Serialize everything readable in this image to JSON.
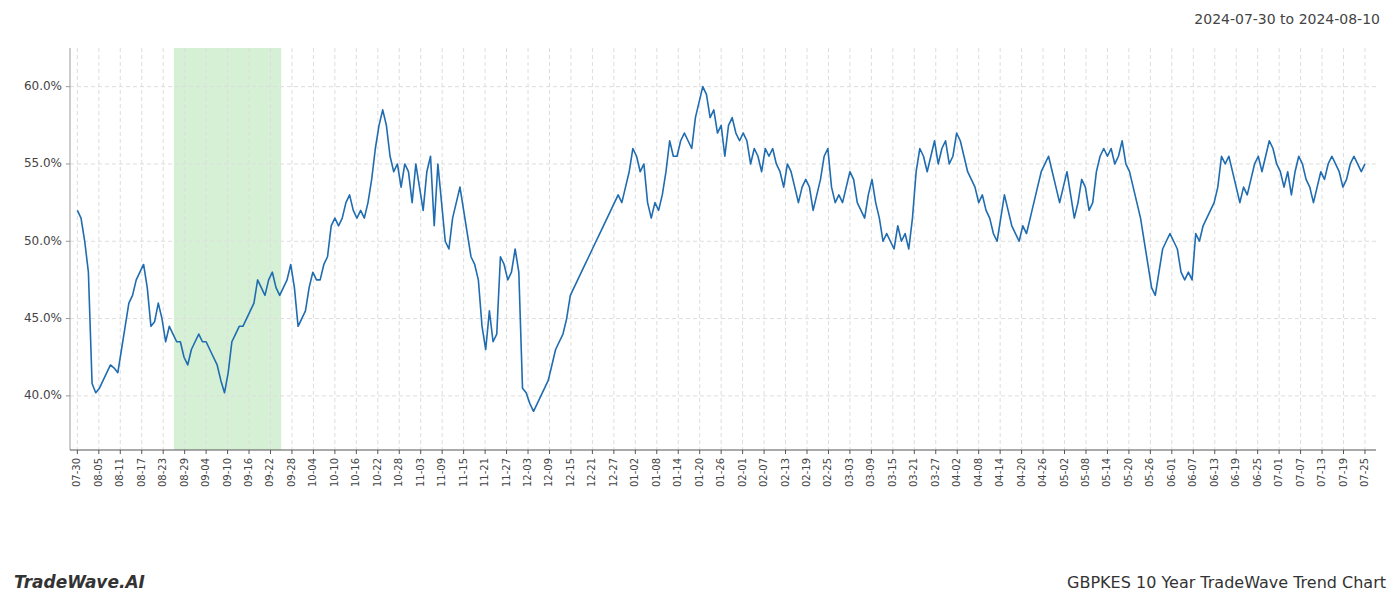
{
  "chart_data": {
    "type": "line",
    "title": "GBPKES 10 Year TradeWave Trend Chart",
    "subtitle": "2024-07-30 to 2024-08-10",
    "annotations": [
      "TradeWave.AI"
    ],
    "color": "#1f6cb0",
    "grid": true,
    "highlight": {
      "xstart": 26.25,
      "xend": 55.416667,
      "color": "#d6f0d6"
    },
    "ylim": [
      36.5,
      62.5
    ],
    "yticks": [
      {
        "value": 40.0,
        "label": "40.0%"
      },
      {
        "value": 45.0,
        "label": "45.0%"
      },
      {
        "value": 50.0,
        "label": "50.0%"
      },
      {
        "value": 55.0,
        "label": "55.0%"
      },
      {
        "value": 60.0,
        "label": "60.0%"
      }
    ],
    "xlim": [
      -2,
      353
    ],
    "xticks": [
      {
        "value": 0,
        "label": "07-30"
      },
      {
        "value": 5.833333,
        "label": "08-05"
      },
      {
        "value": 11.666667,
        "label": "08-11"
      },
      {
        "value": 17.5,
        "label": "08-17"
      },
      {
        "value": 23.333333,
        "label": "08-23"
      },
      {
        "value": 29.166667,
        "label": "08-29"
      },
      {
        "value": 35,
        "label": "09-04"
      },
      {
        "value": 40.833333,
        "label": "09-10"
      },
      {
        "value": 46.666667,
        "label": "09-16"
      },
      {
        "value": 52.5,
        "label": "09-22"
      },
      {
        "value": 58.333333,
        "label": "09-28"
      },
      {
        "value": 64.166667,
        "label": "10-04"
      },
      {
        "value": 70,
        "label": "10-10"
      },
      {
        "value": 75.833333,
        "label": "10-16"
      },
      {
        "value": 81.666667,
        "label": "10-22"
      },
      {
        "value": 87.5,
        "label": "10-28"
      },
      {
        "value": 93.333333,
        "label": "11-03"
      },
      {
        "value": 99.166667,
        "label": "11-09"
      },
      {
        "value": 105,
        "label": "11-15"
      },
      {
        "value": 110.833333,
        "label": "11-21"
      },
      {
        "value": 116.666667,
        "label": "11-27"
      },
      {
        "value": 122.5,
        "label": "12-03"
      },
      {
        "value": 128.333333,
        "label": "12-09"
      },
      {
        "value": 134.166667,
        "label": "12-15"
      },
      {
        "value": 140,
        "label": "12-21"
      },
      {
        "value": 145.833333,
        "label": "12-27"
      },
      {
        "value": 151.666667,
        "label": "01-02"
      },
      {
        "value": 157.5,
        "label": "01-08"
      },
      {
        "value": 163.333333,
        "label": "01-14"
      },
      {
        "value": 169.166667,
        "label": "01-20"
      },
      {
        "value": 175,
        "label": "01-26"
      },
      {
        "value": 180.833333,
        "label": "02-01"
      },
      {
        "value": 186.666667,
        "label": "02-07"
      },
      {
        "value": 192.5,
        "label": "02-13"
      },
      {
        "value": 198.333333,
        "label": "02-19"
      },
      {
        "value": 204.166667,
        "label": "02-25"
      },
      {
        "value": 210,
        "label": "03-03"
      },
      {
        "value": 215.833333,
        "label": "03-09"
      },
      {
        "value": 221.666667,
        "label": "03-15"
      },
      {
        "value": 227.5,
        "label": "03-21"
      },
      {
        "value": 233.333333,
        "label": "03-27"
      },
      {
        "value": 239.166667,
        "label": "04-02"
      },
      {
        "value": 245,
        "label": "04-08"
      },
      {
        "value": 250.833333,
        "label": "04-14"
      },
      {
        "value": 256.666667,
        "label": "04-20"
      },
      {
        "value": 262.5,
        "label": "04-26"
      },
      {
        "value": 268.333333,
        "label": "05-02"
      },
      {
        "value": 274.166667,
        "label": "05-08"
      },
      {
        "value": 280,
        "label": "05-14"
      },
      {
        "value": 285.833333,
        "label": "05-20"
      },
      {
        "value": 291.666667,
        "label": "05-26"
      },
      {
        "value": 297.5,
        "label": "06-01"
      },
      {
        "value": 303.333333,
        "label": "06-07"
      },
      {
        "value": 309.166667,
        "label": "06-13"
      },
      {
        "value": 315,
        "label": "06-19"
      },
      {
        "value": 320.833333,
        "label": "06-25"
      },
      {
        "value": 326.666667,
        "label": "07-01"
      },
      {
        "value": 332.5,
        "label": "07-07"
      },
      {
        "value": 338.333333,
        "label": "07-13"
      },
      {
        "value": 344.166667,
        "label": "07-19"
      },
      {
        "value": 350,
        "label": "07-25"
      }
    ],
    "values": [
      52.0,
      51.5,
      50.0,
      48.0,
      40.8,
      40.2,
      40.5,
      41.0,
      41.5,
      42.0,
      41.8,
      41.5,
      43.0,
      44.5,
      46.0,
      46.5,
      47.5,
      48.0,
      48.5,
      47.0,
      44.5,
      44.8,
      46.0,
      45.0,
      43.5,
      44.5,
      44.0,
      43.5,
      43.5,
      42.5,
      42.0,
      43.0,
      43.5,
      44.0,
      43.5,
      43.5,
      43.0,
      42.5,
      42.0,
      41.0,
      40.2,
      41.5,
      43.5,
      44.0,
      44.5,
      44.5,
      45.0,
      45.5,
      46.0,
      47.5,
      47.0,
      46.5,
      47.5,
      48.0,
      47.0,
      46.5,
      47.0,
      47.5,
      48.5,
      47.0,
      44.5,
      45.0,
      45.5,
      47.0,
      48.0,
      47.5,
      47.5,
      48.5,
      49.0,
      51.0,
      51.5,
      51.0,
      51.5,
      52.5,
      53.0,
      52.0,
      51.5,
      52.0,
      51.5,
      52.5,
      54.0,
      56.0,
      57.5,
      58.5,
      57.5,
      55.5,
      54.5,
      55.0,
      53.5,
      55.0,
      54.5,
      52.5,
      55.0,
      53.5,
      52.0,
      54.5,
      55.5,
      51.0,
      55.0,
      52.5,
      50.0,
      49.5,
      51.5,
      52.5,
      53.5,
      52.0,
      50.5,
      49.0,
      48.5,
      47.5,
      44.5,
      43.0,
      45.5,
      43.5,
      44.0,
      49.0,
      48.5,
      47.5,
      48.0,
      49.5,
      48.0,
      40.5,
      40.2,
      39.5,
      39.0,
      39.5,
      40.0,
      40.5,
      41.0,
      42.0,
      43.0,
      43.5,
      44.0,
      45.0,
      46.5,
      47.0,
      47.5,
      48.0,
      48.5,
      49.0,
      49.5,
      50.0,
      50.5,
      51.0,
      51.5,
      52.0,
      52.5,
      53.0,
      52.5,
      53.5,
      54.5,
      56.0,
      55.5,
      54.5,
      55.0,
      52.5,
      51.5,
      52.5,
      52.0,
      53.0,
      54.5,
      56.5,
      55.5,
      55.5,
      56.5,
      57.0,
      56.5,
      56.0,
      58.0,
      59.0,
      60.0,
      59.5,
      58.0,
      58.5,
      57.0,
      57.5,
      55.5,
      57.5,
      58.0,
      57.0,
      56.5,
      57.0,
      56.5,
      55.0,
      56.0,
      55.5,
      54.5,
      56.0,
      55.5,
      56.0,
      55.0,
      54.5,
      53.5,
      55.0,
      54.5,
      53.5,
      52.5,
      53.5,
      54.0,
      53.5,
      52.0,
      53.0,
      54.0,
      55.5,
      56.0,
      53.5,
      52.5,
      53.0,
      52.5,
      53.5,
      54.5,
      54.0,
      52.5,
      52.0,
      51.5,
      53.0,
      54.0,
      52.5,
      51.5,
      50.0,
      50.5,
      50.0,
      49.5,
      51.0,
      50.0,
      50.5,
      49.5,
      51.5,
      54.5,
      56.0,
      55.5,
      54.5,
      55.5,
      56.5,
      55.0,
      56.0,
      56.5,
      55.0,
      55.5,
      57.0,
      56.5,
      55.5,
      54.5,
      54.0,
      53.5,
      52.5,
      53.0,
      52.0,
      51.5,
      50.5,
      50.0,
      51.5,
      53.0,
      52.0,
      51.0,
      50.5,
      50.0,
      51.0,
      50.5,
      51.5,
      52.5,
      53.5,
      54.5,
      55.0,
      55.5,
      54.5,
      53.5,
      52.5,
      53.5,
      54.5,
      53.0,
      51.5,
      52.5,
      54.0,
      53.5,
      52.0,
      52.5,
      54.5,
      55.5,
      56.0,
      55.5,
      56.0,
      55.0,
      55.5,
      56.5,
      55.0,
      54.5,
      53.5,
      52.5,
      51.5,
      50.0,
      48.5,
      47.0,
      46.5,
      48.0,
      49.5,
      50.0,
      50.5,
      50.0,
      49.5,
      48.0,
      47.5,
      48.0,
      47.5,
      50.5,
      50.0,
      51.0,
      51.5,
      52.0,
      52.5,
      53.5,
      55.5,
      55.0,
      55.5,
      54.5,
      53.5,
      52.5,
      53.5,
      53.0,
      54.0,
      55.0,
      55.5,
      54.5,
      55.5,
      56.5,
      56.0,
      55.0,
      54.5,
      53.5,
      54.5,
      53.0,
      54.5,
      55.5,
      55.0,
      54.0,
      53.5,
      52.5,
      53.5,
      54.5,
      54.0,
      55.0,
      55.5,
      55.0,
      54.5,
      53.5,
      54.0,
      55.0,
      55.5,
      55.0,
      54.5,
      55.0
    ]
  }
}
